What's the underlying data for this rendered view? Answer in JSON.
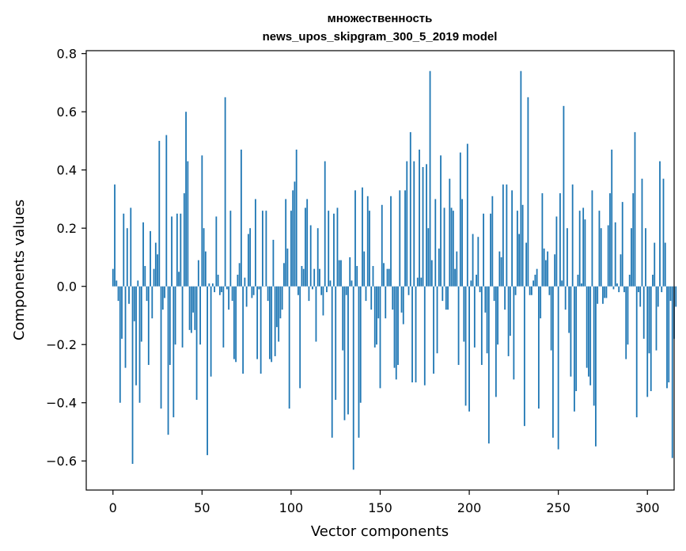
{
  "chart_data": {
    "type": "bar",
    "title_line1": "множественность",
    "title_line2": "news_upos_skipgram_300_5_2019 model",
    "xlabel": "Vector components",
    "ylabel": "Components values",
    "xlim": [
      -15,
      315
    ],
    "ylim": [
      -0.7,
      0.81
    ],
    "x_ticks": [
      0,
      50,
      100,
      150,
      200,
      250,
      300
    ],
    "x_tick_labels": [
      "0",
      "50",
      "100",
      "150",
      "200",
      "250",
      "300"
    ],
    "y_ticks": [
      -0.6,
      -0.4,
      -0.2,
      0.0,
      0.2,
      0.4,
      0.6,
      0.8
    ],
    "y_tick_labels": [
      "−0.6",
      "−0.4",
      "−0.2",
      "0.0",
      "0.2",
      "0.4",
      "0.6",
      "0.8"
    ],
    "bar_color": "#1f77b4",
    "values": [
      0.06,
      0.35,
      0.02,
      -0.05,
      -0.4,
      -0.18,
      0.25,
      -0.28,
      0.2,
      -0.06,
      0.27,
      -0.61,
      -0.12,
      -0.34,
      0.02,
      -0.4,
      -0.19,
      0.22,
      0.07,
      -0.05,
      -0.27,
      0.19,
      -0.11,
      0.06,
      0.15,
      0.11,
      0.5,
      -0.42,
      -0.08,
      -0.04,
      0.52,
      -0.51,
      -0.27,
      0.24,
      -0.45,
      -0.2,
      0.25,
      0.05,
      0.25,
      -0.21,
      0.32,
      0.6,
      0.43,
      -0.15,
      -0.16,
      -0.09,
      -0.15,
      -0.39,
      0.09,
      -0.2,
      0.45,
      0.2,
      0.12,
      -0.58,
      0.01,
      -0.31,
      0.01,
      -0.02,
      0.24,
      0.04,
      -0.03,
      -0.02,
      -0.21,
      0.65,
      -0.01,
      -0.08,
      0.26,
      -0.05,
      -0.25,
      -0.26,
      0.04,
      0.08,
      0.47,
      -0.3,
      0.03,
      -0.07,
      0.18,
      0.2,
      -0.04,
      -0.03,
      0.3,
      -0.25,
      -0.01,
      -0.3,
      0.26,
      0.0,
      0.26,
      -0.05,
      -0.25,
      -0.26,
      0.16,
      -0.24,
      -0.14,
      -0.19,
      -0.11,
      -0.08,
      0.08,
      0.3,
      0.13,
      -0.42,
      0.26,
      0.33,
      0.36,
      0.47,
      -0.03,
      -0.35,
      0.07,
      0.06,
      0.27,
      0.3,
      -0.05,
      0.21,
      -0.01,
      0.06,
      -0.19,
      0.2,
      0.06,
      -0.03,
      -0.1,
      0.43,
      -0.02,
      0.26,
      0.02,
      -0.52,
      0.25,
      -0.39,
      0.27,
      0.09,
      0.09,
      -0.22,
      -0.46,
      -0.03,
      -0.44,
      0.1,
      0.02,
      -0.63,
      0.33,
      0.07,
      -0.52,
      -0.4,
      0.34,
      0.12,
      -0.05,
      0.31,
      0.26,
      -0.08,
      0.07,
      -0.21,
      -0.2,
      -0.11,
      -0.35,
      0.28,
      0.08,
      -0.11,
      0.06,
      0.06,
      0.31,
      -0.08,
      -0.28,
      -0.32,
      -0.27,
      0.33,
      -0.09,
      -0.13,
      0.33,
      0.43,
      -0.03,
      0.53,
      -0.33,
      0.43,
      -0.33,
      0.03,
      0.47,
      0.03,
      0.41,
      -0.34,
      0.42,
      0.2,
      0.74,
      0.09,
      -0.3,
      0.3,
      -0.23,
      0.13,
      0.45,
      -0.05,
      0.27,
      -0.08,
      -0.08,
      0.37,
      0.27,
      0.26,
      0.06,
      0.12,
      -0.27,
      0.46,
      0.3,
      -0.19,
      -0.41,
      0.49,
      -0.43,
      0.02,
      0.18,
      -0.21,
      0.04,
      0.17,
      -0.02,
      -0.27,
      0.25,
      -0.09,
      -0.23,
      -0.54,
      0.25,
      0.31,
      -0.05,
      -0.38,
      -0.2,
      0.12,
      0.1,
      0.35,
      -0.08,
      0.35,
      -0.24,
      -0.17,
      0.33,
      -0.32,
      -0.03,
      0.26,
      0.18,
      0.74,
      0.28,
      -0.48,
      0.15,
      0.65,
      -0.03,
      -0.03,
      0.02,
      0.04,
      0.06,
      -0.42,
      -0.11,
      0.32,
      0.13,
      0.09,
      0.12,
      -0.03,
      -0.22,
      -0.52,
      0.11,
      0.24,
      -0.56,
      0.32,
      0.02,
      0.62,
      -0.08,
      0.2,
      -0.16,
      -0.31,
      0.35,
      -0.43,
      -0.36,
      0.04,
      0.26,
      0.01,
      0.27,
      0.23,
      -0.28,
      -0.31,
      -0.34,
      0.33,
      -0.41,
      -0.55,
      -0.06,
      0.26,
      0.2,
      -0.06,
      -0.04,
      -0.04,
      0.21,
      0.32,
      0.47,
      -0.01,
      0.22,
      0.01,
      -0.02,
      0.11,
      0.29,
      -0.02,
      -0.25,
      -0.2,
      0.04,
      0.2,
      0.32,
      0.53,
      -0.45,
      -0.02,
      -0.07,
      0.37,
      -0.18,
      0.2,
      -0.38,
      -0.23,
      -0.36,
      0.04,
      0.15,
      -0.22,
      -0.07,
      0.43,
      -0.02,
      0.37,
      0.15,
      -0.35,
      -0.33,
      -0.05,
      -0.59,
      -0.18,
      -0.07
    ]
  }
}
